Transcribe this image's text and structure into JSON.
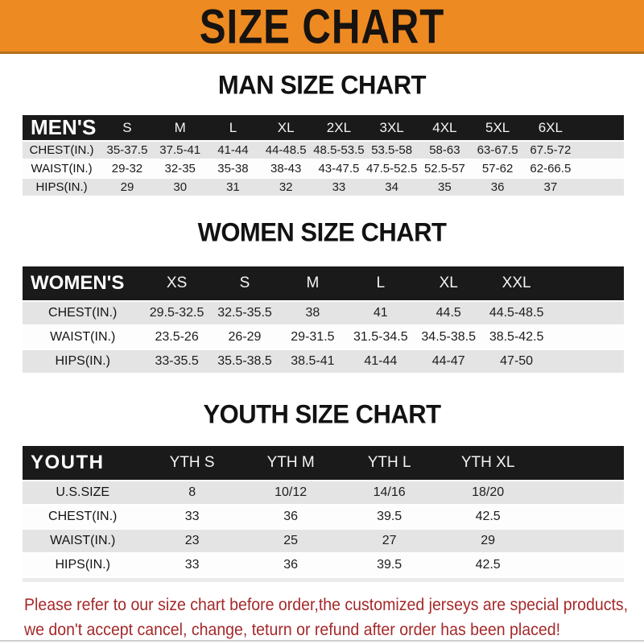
{
  "banner": {
    "title": "SIZE CHART"
  },
  "colors": {
    "banner_orange": "#EE8A22",
    "header_black": "#1a1a1a",
    "row_gray": "#e4e4e4",
    "note_red": "#A5292A"
  },
  "sections": {
    "men": {
      "heading": "MAN SIZE CHART",
      "table": {
        "label": "MEN'S",
        "columns": [
          "S",
          "M",
          "L",
          "XL",
          "2XL",
          "3XL",
          "4XL",
          "5XL",
          "6XL"
        ],
        "rows": [
          {
            "label": "CHEST(IN.)",
            "values": [
              "35-37.5",
              "37.5-41",
              "41-44",
              "44-48.5",
              "48.5-53.5",
              "53.5-58",
              "58-63",
              "63-67.5",
              "67.5-72"
            ]
          },
          {
            "label": "WAIST(IN.)",
            "values": [
              "29-32",
              "32-35",
              "35-38",
              "38-43",
              "43-47.5",
              "47.5-52.5",
              "52.5-57",
              "57-62",
              "62-66.5"
            ]
          },
          {
            "label": "HIPS(IN.)",
            "values": [
              "29",
              "30",
              "31",
              "32",
              "33",
              "34",
              "35",
              "36",
              "37"
            ]
          }
        ]
      }
    },
    "women": {
      "heading": "WOMEN SIZE CHART",
      "table": {
        "label": "WOMEN'S",
        "columns": [
          "XS",
          "S",
          "M",
          "L",
          "XL",
          "XXL"
        ],
        "rows": [
          {
            "label": "CHEST(IN.)",
            "values": [
              "29.5-32.5",
              "32.5-35.5",
              "38",
              "41",
              "44.5",
              "44.5-48.5"
            ]
          },
          {
            "label": "WAIST(IN.)",
            "values": [
              "23.5-26",
              "26-29",
              "29-31.5",
              "31.5-34.5",
              "34.5-38.5",
              "38.5-42.5"
            ]
          },
          {
            "label": "HIPS(IN.)",
            "values": [
              "33-35.5",
              "35.5-38.5",
              "38.5-41",
              "41-44",
              "44-47",
              "47-50"
            ]
          }
        ]
      }
    },
    "youth": {
      "heading": "YOUTH SIZE CHART",
      "table": {
        "label": "YOUTH",
        "columns": [
          "YTH S",
          "YTH M",
          "YTH L",
          "YTH XL"
        ],
        "rows": [
          {
            "label": "U.S.SIZE",
            "values": [
              "8",
              "10/12",
              "14/16",
              "18/20"
            ]
          },
          {
            "label": "CHEST(IN.)",
            "values": [
              "33",
              "36",
              "39.5",
              "42.5"
            ]
          },
          {
            "label": "WAIST(IN.)",
            "values": [
              "23",
              "25",
              "27",
              "29"
            ]
          },
          {
            "label": "HIPS(IN.)",
            "values": [
              "33",
              "36",
              "39.5",
              "42.5"
            ]
          }
        ]
      }
    }
  },
  "footer": {
    "line1": "Please refer to our size chart before order,the customized jerseys are special products,",
    "line2": "we don't accept cancel, change, teturn or refund after order has been placed!"
  }
}
